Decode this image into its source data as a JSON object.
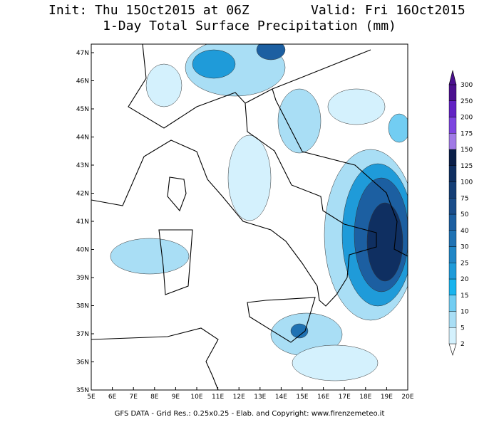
{
  "header": {
    "title_left": "Init: Thu 15Oct2015 at 06Z",
    "title_right": "Valid: Fri 16Oct2015",
    "subtitle": "1-Day Total Surface Precipitation (mm)"
  },
  "map": {
    "lon_labels": [
      "5E",
      "6E",
      "7E",
      "8E",
      "9E",
      "10E",
      "11E",
      "12E",
      "13E",
      "14E",
      "15E",
      "16E",
      "17E",
      "18E",
      "19E",
      "20E"
    ],
    "lat_labels": [
      "35N",
      "36N",
      "37N",
      "38N",
      "39N",
      "40N",
      "41N",
      "42N",
      "43N",
      "44N",
      "45N",
      "46N",
      "47N"
    ]
  },
  "colorbar": {
    "levels": [
      2,
      5,
      10,
      15,
      20,
      25,
      30,
      40,
      50,
      75,
      100,
      125,
      150,
      175,
      200,
      250,
      300
    ],
    "colors": [
      "#ffffff",
      "#d4f1fd",
      "#a9def5",
      "#72cdf2",
      "#18b4ee",
      "#1f9bd9",
      "#2086c6",
      "#1f72b3",
      "#1c5fa1",
      "#1a4d8a",
      "#143e76",
      "#0f2f61",
      "#0a1f48",
      "#a07ae6",
      "#7d45e0",
      "#6222c4",
      "#4b108f"
    ]
  },
  "footer": "GFS DATA - Grid Res.: 0.25x0.25 - Elab. and Copyright: www.firenzemeteo.it"
}
